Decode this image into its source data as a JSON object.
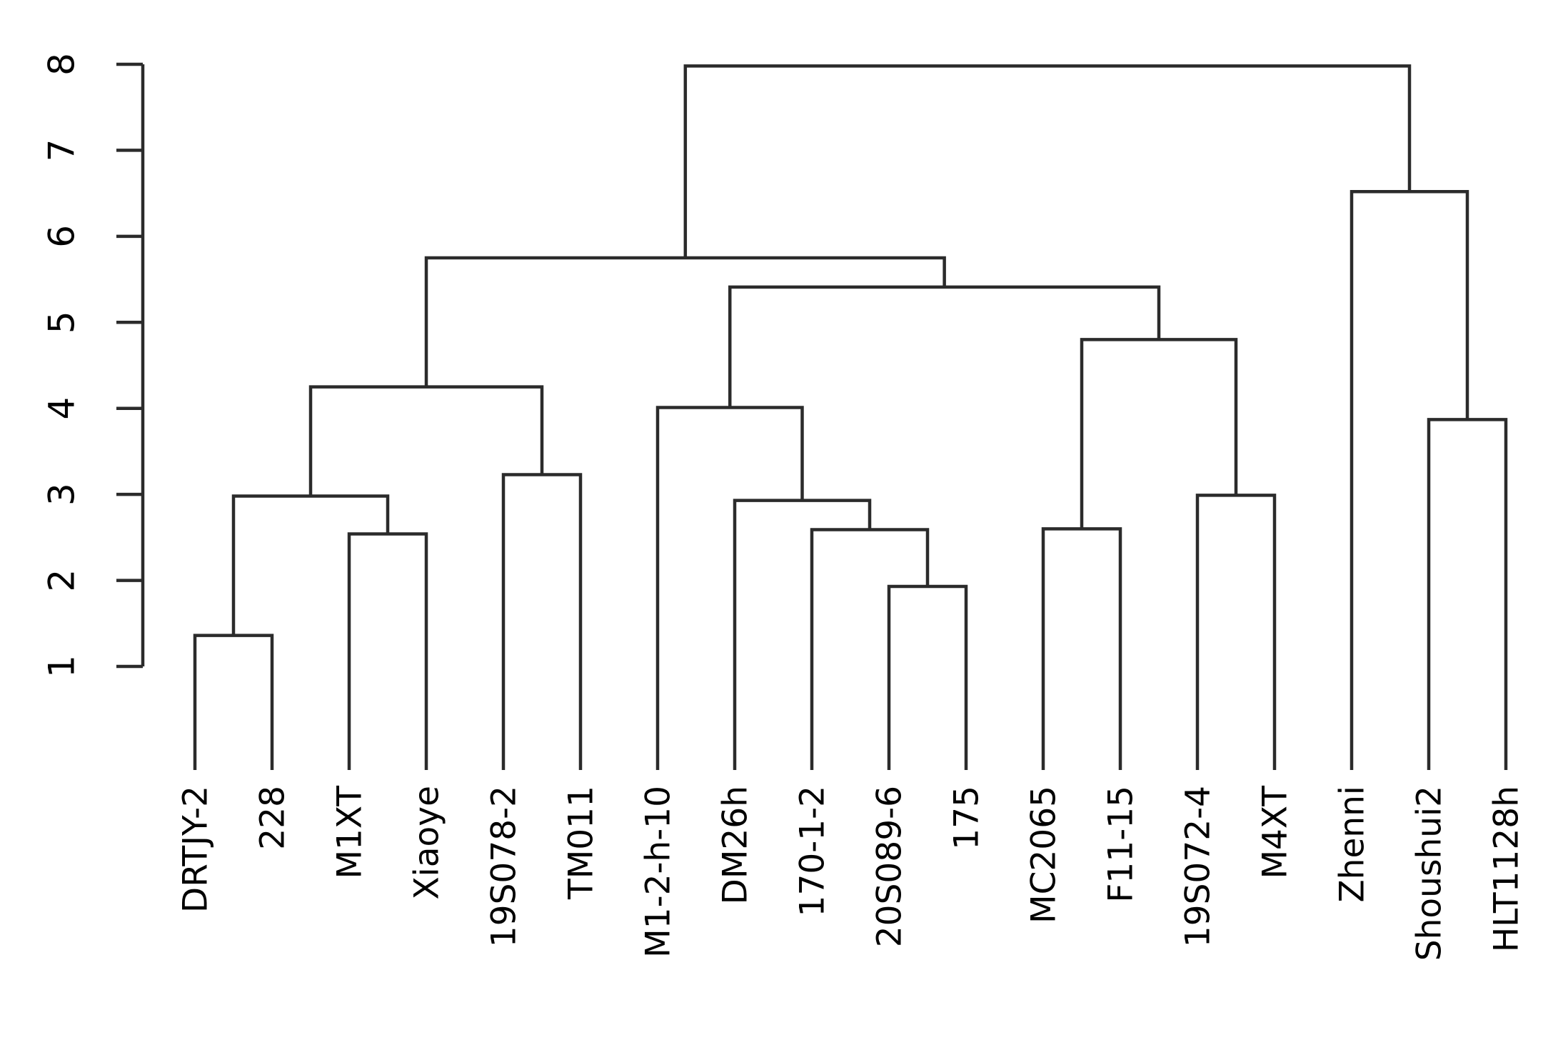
{
  "chart_data": {
    "type": "dendrogram",
    "title": "",
    "xlabel": "",
    "ylabel": "",
    "orientation": "vertical-leaves-bottom",
    "background_color": "#ffffff",
    "line_color": "#2b2b2b",
    "text_color": "#000000",
    "yaxis": {
      "min": 1,
      "max": 8,
      "ticks": [
        1,
        2,
        3,
        4,
        5,
        6,
        7,
        8
      ],
      "tick_labels": [
        "1",
        "2",
        "3",
        "4",
        "5",
        "6",
        "7",
        "8"
      ]
    },
    "leaves": [
      "DRTJY-2",
      "228",
      "M1XT",
      "Xiaoye",
      "19S078-2",
      "TM011",
      "M1-2-h-10",
      "DM26h",
      "170-1-2",
      "20S089-6",
      "175",
      "MC2065",
      "F11-15",
      "19S072-4",
      "M4XT",
      "Zhenni",
      "Shoushui2",
      "HLT1128h"
    ],
    "tree": {
      "height": 7.98,
      "children": [
        {
          "height": 5.75,
          "children": [
            {
              "height": 4.25,
              "children": [
                {
                  "height": 2.98,
                  "children": [
                    {
                      "height": 1.36,
                      "children": [
                        {
                          "leaf": "DRTJY-2"
                        },
                        {
                          "leaf": "228"
                        }
                      ]
                    },
                    {
                      "height": 2.54,
                      "children": [
                        {
                          "leaf": "M1XT"
                        },
                        {
                          "leaf": "Xiaoye"
                        }
                      ]
                    }
                  ]
                },
                {
                  "height": 3.23,
                  "children": [
                    {
                      "leaf": "19S078-2"
                    },
                    {
                      "leaf": "TM011"
                    }
                  ]
                }
              ]
            },
            {
              "height": 5.41,
              "children": [
                {
                  "height": 4.01,
                  "children": [
                    {
                      "leaf": "M1-2-h-10"
                    },
                    {
                      "height": 2.93,
                      "children": [
                        {
                          "leaf": "DM26h"
                        },
                        {
                          "height": 2.59,
                          "children": [
                            {
                              "leaf": "170-1-2"
                            },
                            {
                              "height": 1.93,
                              "children": [
                                {
                                  "leaf": "20S089-6"
                                },
                                {
                                  "leaf": "175"
                                }
                              ]
                            }
                          ]
                        }
                      ]
                    }
                  ]
                },
                {
                  "height": 4.8,
                  "children": [
                    {
                      "height": 2.6,
                      "children": [
                        {
                          "leaf": "MC2065"
                        },
                        {
                          "leaf": "F11-15"
                        }
                      ]
                    },
                    {
                      "height": 2.99,
                      "children": [
                        {
                          "leaf": "19S072-4"
                        },
                        {
                          "leaf": "M4XT"
                        }
                      ]
                    }
                  ]
                }
              ]
            }
          ]
        },
        {
          "height": 6.52,
          "children": [
            {
              "leaf": "Zhenni"
            },
            {
              "height": 3.87,
              "children": [
                {
                  "leaf": "Shoushui2"
                },
                {
                  "leaf": "HLT1128h"
                }
              ]
            }
          ]
        }
      ]
    }
  }
}
